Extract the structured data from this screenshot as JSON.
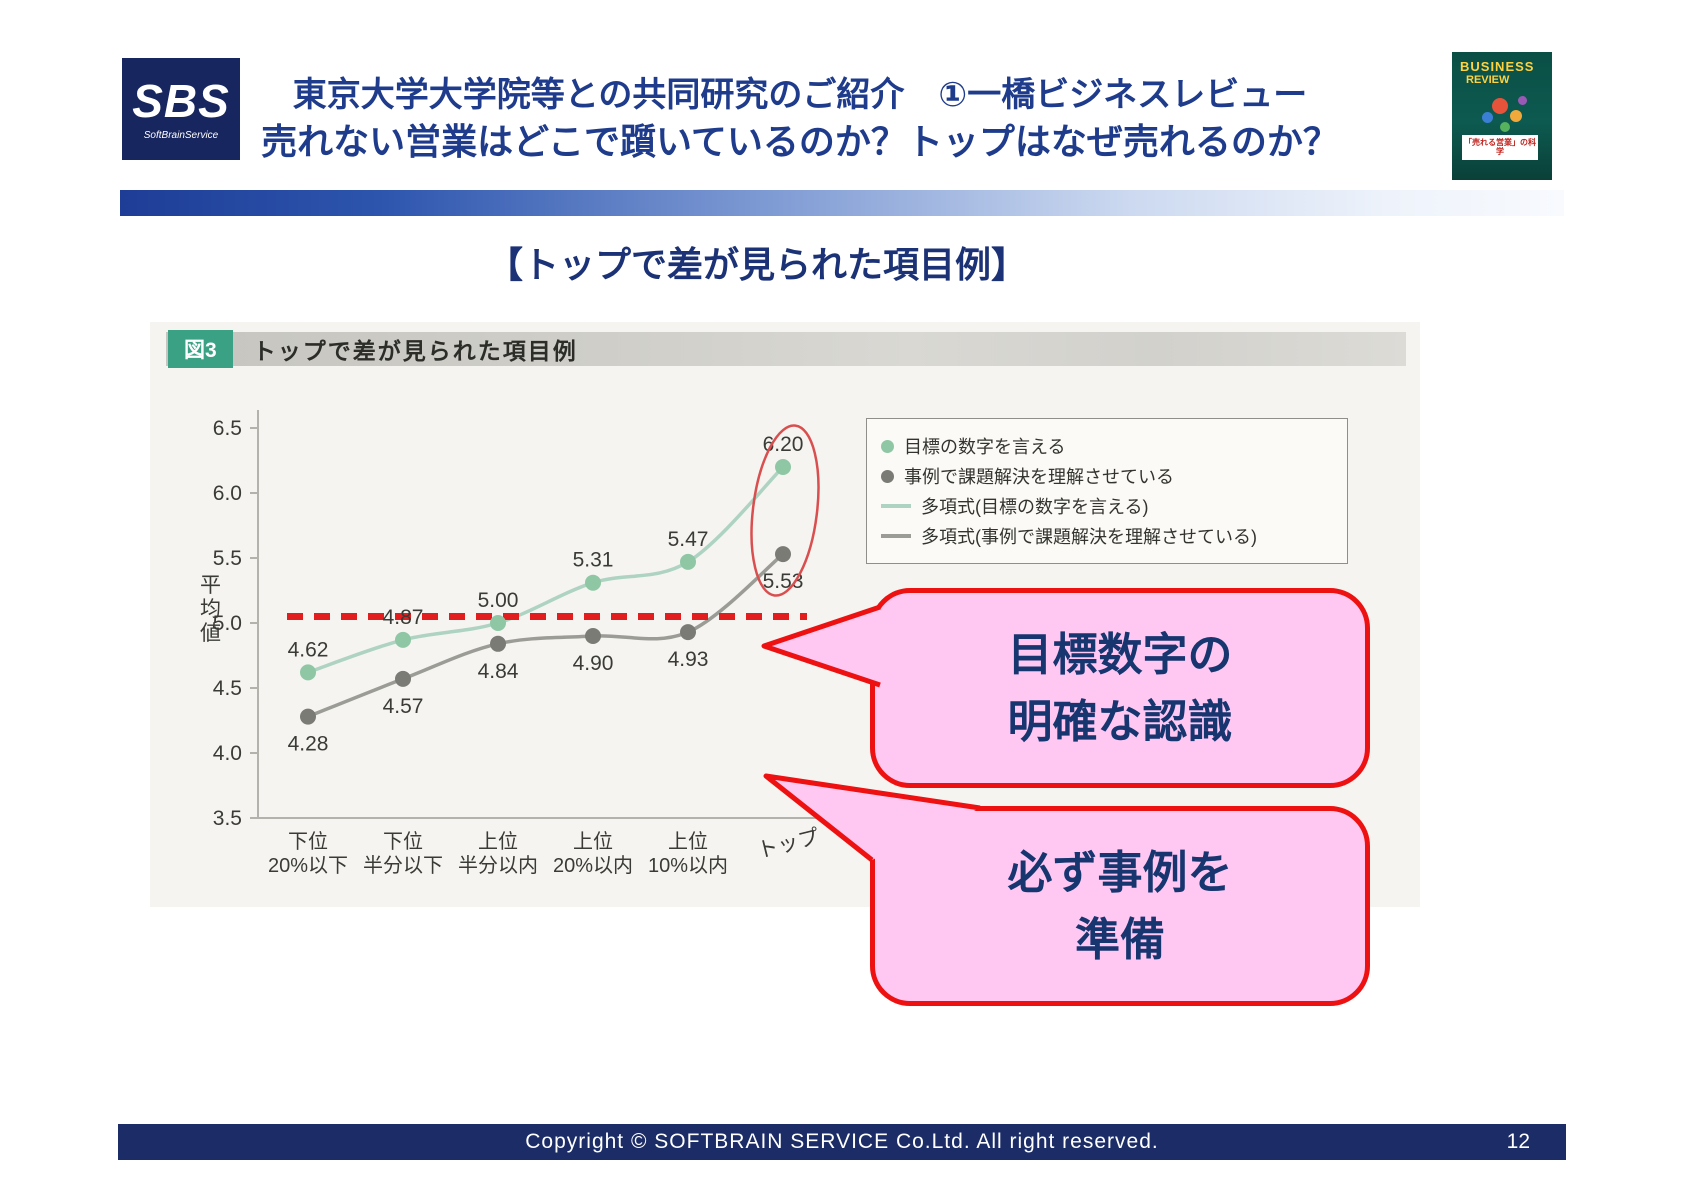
{
  "slide": {
    "header": {
      "logo": {
        "text": "SBS",
        "subtext": "SoftBrainService"
      },
      "title_line1": "東京大学大学院等との共同研究のご紹介　①一橋ビジネスレビュー",
      "title_line2": "売れない営業はどこで躓いているのか？トップはなぜ売れるのか？",
      "book": {
        "line1": "BUSINESS",
        "line2": "REVIEW",
        "caption": "「売れる営業」の科学"
      }
    },
    "section_title": "【トップで差が見られた項目例】",
    "figure": {
      "tag": "図3",
      "title": "トップで差が見られた項目例"
    },
    "callouts": [
      {
        "line1": "目標数字の",
        "line2": "明確な認識"
      },
      {
        "line1": "必ず事例を",
        "line2": "準備"
      }
    ],
    "footer": {
      "copyright": "Copyright  ©  SOFTBRAIN SERVICE Co.Ltd. All right reserved.",
      "page": "12"
    },
    "colors": {
      "accent_navy": "#1f3c8c",
      "callout_pink": "#fec8f3",
      "callout_border_red": "#ee1111",
      "footer_navy": "#1b2c66"
    }
  },
  "chart_data": {
    "type": "scatter",
    "title": "図3 トップで差が見られた項目例",
    "xlabel": "",
    "ylabel": "平均値",
    "ylim": [
      3.5,
      6.5
    ],
    "ytick_step": 0.5,
    "grid": false,
    "legend_position": "upper right",
    "categories": [
      [
        "下位",
        "20%以下"
      ],
      [
        "下位",
        "半分以下"
      ],
      [
        "上位",
        "半分以内"
      ],
      [
        "上位",
        "20%以内"
      ],
      [
        "上位",
        "10%以内"
      ],
      [
        "トップ"
      ]
    ],
    "series": [
      {
        "name": "目標の数字を言える",
        "color": "#8fc7a4",
        "values": [
          4.62,
          4.87,
          5.0,
          5.31,
          5.47,
          6.2
        ],
        "label_position": "above"
      },
      {
        "name": "事例で課題解決を理解させている",
        "color": "#7b7b75",
        "values": [
          4.28,
          4.57,
          4.84,
          4.9,
          4.93,
          5.53
        ],
        "label_position": "below"
      }
    ],
    "trendlines": [
      {
        "name": "多項式(目標の数字を言える)",
        "series": 0,
        "color": "#aed3c3"
      },
      {
        "name": "多項式(事例で課題解決を理解させている)",
        "series": 1,
        "color": "#9c9c96"
      }
    ],
    "legend": [
      "目標の数字を言える",
      "事例で課題解決を理解させている",
      "多項式(目標の数字を言える)",
      "多項式(事例で課題解決を理解させている)"
    ],
    "annotations": {
      "red_dashed_line_y": 5.05,
      "ellipse_highlight_category": "トップ"
    }
  }
}
